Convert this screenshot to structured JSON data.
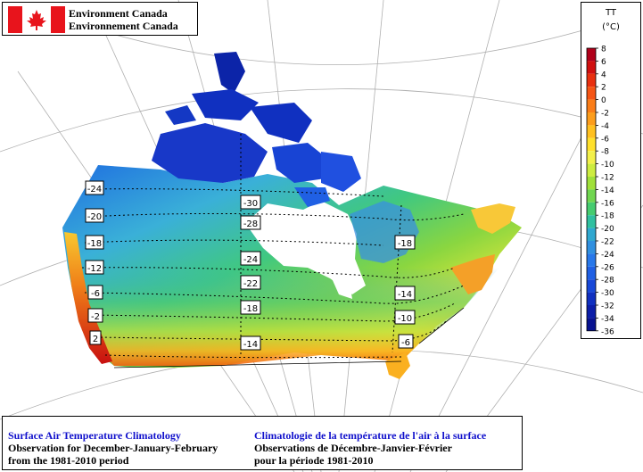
{
  "header": {
    "agency_en": "Environment Canada",
    "agency_fr": "Environnement Canada"
  },
  "legend": {
    "variable": "TT",
    "unit": "(°C)",
    "levels": [
      8,
      6,
      4,
      2,
      0,
      -2,
      -4,
      -6,
      -8,
      -10,
      -12,
      -14,
      -16,
      -18,
      -20,
      -22,
      -24,
      -26,
      -28,
      -30,
      -32,
      -34,
      -36
    ],
    "colors": [
      "#b0001a",
      "#d01010",
      "#e83010",
      "#f55515",
      "#fa7d18",
      "#fc9d1c",
      "#ffc020",
      "#ffe02c",
      "#f3f04a",
      "#cdec40",
      "#a0e03a",
      "#70d650",
      "#46cc70",
      "#30c0a0",
      "#30a8d0",
      "#3090e0",
      "#2878ea",
      "#2060e4",
      "#1848d8",
      "#1030c0",
      "#0c1ea8",
      "#081290",
      "#040c78"
    ]
  },
  "contour_labels": [
    "-24",
    "-20",
    "-18",
    "-12",
    "-6",
    "-2",
    "2",
    "-30",
    "-28",
    "-24",
    "-22",
    "-18",
    "-14",
    "-18",
    "-14",
    "-10",
    "-6"
  ],
  "footer": {
    "title_en": "Surface Air Temperature Climatology",
    "title_fr": "Climatologie de la température de l'air à la surface",
    "line2_en": "Observation for December-January-February",
    "line2_fr": "Observations de Décembre-Janvier-Février",
    "line3_en": "from the 1981-2010 period",
    "line3_fr": "pour la période 1981-2010"
  }
}
